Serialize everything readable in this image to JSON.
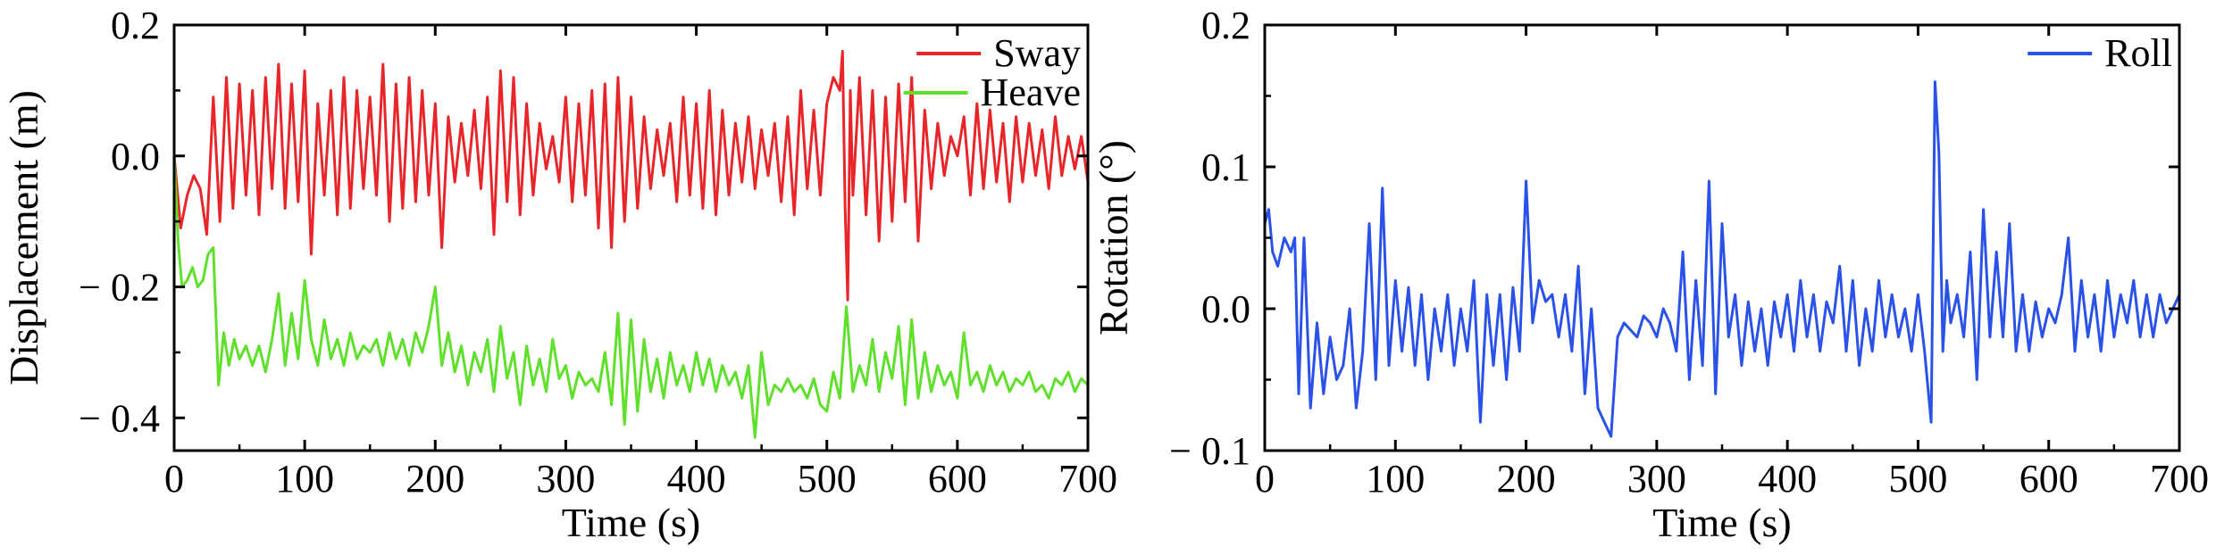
{
  "chart_data": [
    {
      "type": "line",
      "xlabel": "Time (s)",
      "ylabel": "Displacement (m)",
      "xlim": [
        0,
        700
      ],
      "ylim": [
        -0.45,
        0.2
      ],
      "xticks": [
        0,
        100,
        200,
        300,
        400,
        500,
        600,
        700
      ],
      "xtick_labels": [
        "0",
        "100",
        "200",
        "300",
        "400",
        "500",
        "600",
        "700"
      ],
      "yticks": [
        0.2,
        0.0,
        -0.2,
        -0.4
      ],
      "ytick_labels": [
        "0.2",
        "0.0",
        "− 0.2",
        "− 0.4"
      ],
      "grid": false,
      "legend": "top-right",
      "series": [
        {
          "name": "Sway",
          "color": "#e8262a",
          "x": [
            0,
            5,
            10,
            15,
            20,
            25,
            30,
            35,
            40,
            45,
            50,
            55,
            60,
            65,
            70,
            75,
            80,
            85,
            90,
            95,
            100,
            105,
            110,
            115,
            120,
            125,
            130,
            135,
            140,
            145,
            150,
            155,
            160,
            165,
            170,
            175,
            180,
            185,
            190,
            195,
            200,
            205,
            210,
            215,
            220,
            225,
            230,
            235,
            240,
            245,
            250,
            255,
            260,
            265,
            270,
            275,
            280,
            285,
            290,
            295,
            300,
            305,
            310,
            315,
            320,
            325,
            330,
            335,
            340,
            345,
            350,
            355,
            360,
            365,
            370,
            375,
            380,
            385,
            390,
            395,
            400,
            405,
            410,
            415,
            420,
            425,
            430,
            435,
            440,
            445,
            450,
            455,
            460,
            465,
            470,
            475,
            480,
            485,
            490,
            495,
            500,
            505,
            510,
            512,
            514,
            516,
            518,
            520,
            525,
            530,
            535,
            540,
            545,
            550,
            555,
            560,
            565,
            570,
            575,
            580,
            585,
            590,
            595,
            600,
            605,
            610,
            615,
            620,
            625,
            630,
            635,
            640,
            645,
            650,
            655,
            660,
            665,
            670,
            675,
            680,
            685,
            690,
            695,
            700
          ],
          "y": [
            0.0,
            -0.11,
            -0.06,
            -0.03,
            -0.05,
            -0.12,
            0.09,
            -0.1,
            0.12,
            -0.08,
            0.11,
            -0.06,
            0.1,
            -0.09,
            0.12,
            -0.05,
            0.14,
            -0.08,
            0.11,
            -0.07,
            0.13,
            -0.15,
            0.08,
            -0.06,
            0.1,
            -0.09,
            0.12,
            -0.08,
            0.1,
            -0.05,
            0.09,
            -0.06,
            0.14,
            -0.1,
            0.11,
            -0.08,
            0.12,
            -0.07,
            0.1,
            -0.06,
            0.08,
            -0.14,
            0.06,
            -0.04,
            0.05,
            -0.03,
            0.07,
            -0.05,
            0.09,
            -0.12,
            0.13,
            -0.07,
            0.12,
            -0.09,
            0.08,
            -0.06,
            0.05,
            -0.02,
            0.03,
            -0.04,
            0.09,
            -0.07,
            0.08,
            -0.06,
            0.1,
            -0.11,
            0.11,
            -0.14,
            0.12,
            -0.1,
            0.09,
            -0.08,
            0.06,
            -0.05,
            0.04,
            -0.03,
            0.05,
            -0.07,
            0.09,
            -0.06,
            0.08,
            -0.08,
            0.1,
            -0.09,
            0.07,
            -0.06,
            0.05,
            -0.04,
            0.06,
            -0.05,
            0.04,
            -0.03,
            0.05,
            -0.07,
            0.06,
            -0.09,
            0.1,
            -0.05,
            0.07,
            -0.06,
            0.08,
            0.12,
            0.1,
            0.16,
            -0.08,
            -0.22,
            0.1,
            -0.06,
            0.12,
            -0.09,
            0.1,
            -0.13,
            0.09,
            -0.1,
            0.11,
            -0.07,
            0.12,
            -0.13,
            0.07,
            -0.05,
            0.05,
            -0.03,
            0.03,
            0.0,
            0.06,
            -0.06,
            0.08,
            -0.05,
            0.07,
            -0.04,
            0.05,
            -0.07,
            0.06,
            -0.04,
            0.05,
            -0.03,
            0.04,
            -0.05,
            0.06,
            -0.03,
            0.03,
            -0.02,
            0.03,
            -0.04
          ]
        },
        {
          "name": "Heave",
          "color": "#5fe02b",
          "x": [
            0,
            3,
            6,
            10,
            14,
            18,
            22,
            26,
            30,
            34,
            38,
            42,
            46,
            50,
            55,
            60,
            65,
            70,
            75,
            80,
            85,
            90,
            95,
            100,
            105,
            110,
            115,
            120,
            125,
            130,
            135,
            140,
            145,
            150,
            155,
            160,
            165,
            170,
            175,
            180,
            185,
            190,
            195,
            200,
            205,
            210,
            215,
            220,
            225,
            230,
            235,
            240,
            245,
            250,
            255,
            260,
            265,
            270,
            275,
            280,
            285,
            290,
            295,
            300,
            305,
            310,
            315,
            320,
            325,
            330,
            335,
            340,
            345,
            350,
            355,
            360,
            365,
            370,
            375,
            380,
            385,
            390,
            395,
            400,
            405,
            410,
            415,
            420,
            425,
            430,
            435,
            440,
            445,
            450,
            455,
            460,
            465,
            470,
            475,
            480,
            485,
            490,
            495,
            500,
            505,
            510,
            515,
            520,
            525,
            530,
            535,
            540,
            545,
            550,
            555,
            560,
            565,
            570,
            575,
            580,
            585,
            590,
            595,
            600,
            605,
            610,
            615,
            620,
            625,
            630,
            635,
            640,
            645,
            650,
            655,
            660,
            665,
            670,
            675,
            680,
            685,
            690,
            695,
            700
          ],
          "y": [
            0.0,
            -0.13,
            -0.2,
            -0.19,
            -0.17,
            -0.2,
            -0.19,
            -0.15,
            -0.14,
            -0.35,
            -0.27,
            -0.32,
            -0.28,
            -0.31,
            -0.29,
            -0.32,
            -0.29,
            -0.33,
            -0.28,
            -0.21,
            -0.32,
            -0.24,
            -0.31,
            -0.19,
            -0.28,
            -0.32,
            -0.25,
            -0.31,
            -0.28,
            -0.32,
            -0.27,
            -0.31,
            -0.29,
            -0.3,
            -0.28,
            -0.32,
            -0.27,
            -0.31,
            -0.28,
            -0.32,
            -0.27,
            -0.3,
            -0.26,
            -0.2,
            -0.32,
            -0.27,
            -0.33,
            -0.29,
            -0.35,
            -0.3,
            -0.33,
            -0.28,
            -0.36,
            -0.26,
            -0.34,
            -0.3,
            -0.38,
            -0.29,
            -0.35,
            -0.31,
            -0.36,
            -0.28,
            -0.34,
            -0.32,
            -0.37,
            -0.33,
            -0.35,
            -0.34,
            -0.36,
            -0.3,
            -0.38,
            -0.24,
            -0.41,
            -0.25,
            -0.39,
            -0.28,
            -0.36,
            -0.31,
            -0.37,
            -0.3,
            -0.35,
            -0.32,
            -0.36,
            -0.3,
            -0.35,
            -0.31,
            -0.36,
            -0.32,
            -0.35,
            -0.33,
            -0.37,
            -0.32,
            -0.43,
            -0.3,
            -0.38,
            -0.35,
            -0.36,
            -0.34,
            -0.36,
            -0.35,
            -0.37,
            -0.34,
            -0.38,
            -0.39,
            -0.33,
            -0.37,
            -0.23,
            -0.36,
            -0.32,
            -0.35,
            -0.28,
            -0.36,
            -0.3,
            -0.34,
            -0.26,
            -0.38,
            -0.25,
            -0.37,
            -0.3,
            -0.36,
            -0.32,
            -0.35,
            -0.33,
            -0.37,
            -0.27,
            -0.35,
            -0.33,
            -0.36,
            -0.32,
            -0.35,
            -0.33,
            -0.36,
            -0.34,
            -0.35,
            -0.33,
            -0.36,
            -0.35,
            -0.37,
            -0.34,
            -0.35,
            -0.33,
            -0.36,
            -0.34,
            -0.35
          ]
        }
      ]
    },
    {
      "type": "line",
      "xlabel": "Time (s)",
      "ylabel": "Rotation (°)",
      "xlim": [
        0,
        700
      ],
      "ylim": [
        -0.1,
        0.2
      ],
      "xticks": [
        0,
        100,
        200,
        300,
        400,
        500,
        600,
        700
      ],
      "xtick_labels": [
        "0",
        "100",
        "200",
        "300",
        "400",
        "500",
        "600",
        "700"
      ],
      "yticks": [
        0.2,
        0.1,
        0.0,
        -0.1
      ],
      "ytick_labels": [
        "0.2",
        "0.1",
        "0.0",
        "− 0.1"
      ],
      "grid": false,
      "legend": "top-right",
      "series": [
        {
          "name": "Roll",
          "color": "#2a52e8",
          "x": [
            0,
            3,
            6,
            10,
            15,
            20,
            23,
            26,
            30,
            35,
            40,
            45,
            50,
            55,
            60,
            65,
            70,
            75,
            80,
            85,
            90,
            95,
            100,
            105,
            110,
            115,
            120,
            125,
            130,
            135,
            140,
            145,
            150,
            155,
            160,
            165,
            170,
            175,
            180,
            185,
            190,
            195,
            200,
            205,
            210,
            215,
            220,
            225,
            230,
            235,
            240,
            245,
            250,
            255,
            260,
            265,
            270,
            275,
            280,
            285,
            290,
            295,
            300,
            305,
            310,
            315,
            320,
            325,
            330,
            335,
            340,
            345,
            350,
            355,
            360,
            365,
            370,
            375,
            380,
            385,
            390,
            395,
            400,
            405,
            410,
            415,
            420,
            425,
            430,
            435,
            440,
            445,
            450,
            455,
            460,
            465,
            470,
            475,
            480,
            485,
            490,
            495,
            500,
            505,
            510,
            513,
            516,
            519,
            522,
            525,
            530,
            535,
            540,
            545,
            550,
            555,
            560,
            565,
            570,
            575,
            580,
            585,
            590,
            595,
            600,
            605,
            610,
            615,
            620,
            625,
            630,
            635,
            640,
            645,
            650,
            655,
            660,
            665,
            670,
            675,
            680,
            685,
            690,
            695,
            700
          ],
          "y": [
            0.06,
            0.07,
            0.04,
            0.03,
            0.05,
            0.04,
            0.05,
            -0.06,
            0.05,
            -0.07,
            -0.01,
            -0.06,
            -0.02,
            -0.05,
            -0.04,
            0.0,
            -0.07,
            -0.03,
            0.06,
            -0.05,
            0.085,
            -0.04,
            0.02,
            -0.03,
            0.015,
            -0.04,
            0.01,
            -0.05,
            0.0,
            -0.03,
            0.01,
            -0.04,
            0.0,
            -0.03,
            0.02,
            -0.08,
            0.01,
            -0.04,
            0.01,
            -0.05,
            0.015,
            -0.03,
            0.09,
            -0.01,
            0.02,
            0.005,
            0.01,
            -0.02,
            0.01,
            -0.03,
            0.03,
            -0.06,
            0.0,
            -0.07,
            -0.08,
            -0.09,
            -0.02,
            -0.01,
            -0.015,
            -0.02,
            -0.005,
            -0.01,
            -0.02,
            0.0,
            -0.01,
            -0.03,
            0.04,
            -0.05,
            0.02,
            -0.04,
            0.09,
            -0.06,
            0.06,
            -0.02,
            0.01,
            -0.04,
            0.005,
            -0.03,
            0.0,
            -0.04,
            0.005,
            -0.02,
            0.01,
            -0.03,
            0.02,
            -0.02,
            0.01,
            -0.03,
            0.005,
            -0.01,
            0.03,
            -0.03,
            0.02,
            -0.04,
            0.0,
            -0.03,
            0.02,
            -0.02,
            0.01,
            -0.02,
            0.0,
            -0.03,
            0.01,
            -0.03,
            -0.08,
            0.16,
            0.11,
            -0.03,
            0.02,
            -0.01,
            0.01,
            -0.02,
            0.04,
            -0.05,
            0.07,
            -0.02,
            0.04,
            -0.02,
            0.06,
            -0.03,
            0.01,
            -0.03,
            0.005,
            -0.02,
            0.0,
            -0.01,
            0.01,
            0.05,
            -0.03,
            0.02,
            -0.02,
            0.01,
            -0.03,
            0.02,
            -0.02,
            0.01,
            -0.01,
            0.02,
            -0.02,
            0.01,
            -0.02,
            0.01,
            -0.01,
            0.0,
            0.01
          ]
        }
      ]
    }
  ]
}
